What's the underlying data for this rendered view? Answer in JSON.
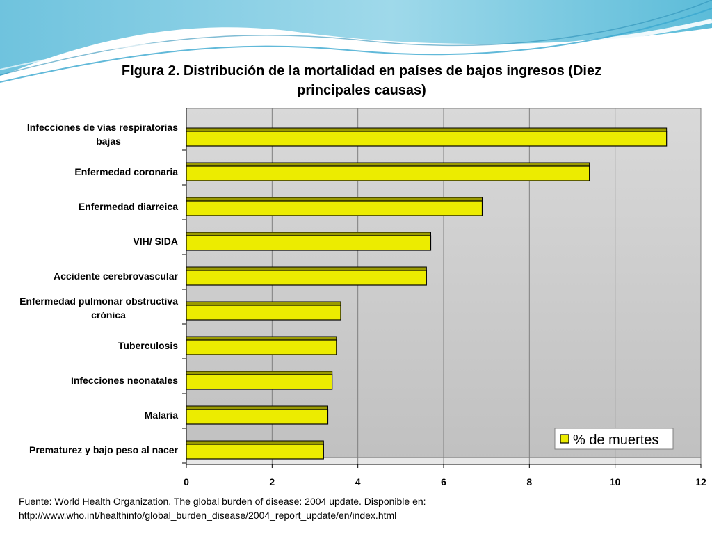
{
  "title": "FIgura 2. Distribución de la mortalidad en países de bajos ingresos (Diez principales causas)",
  "colors": {
    "bar_fill": "#ecec00",
    "bar_edge": "#000000",
    "plot_bg_top": "#d9d9d9",
    "plot_bg_bottom": "#c0c0c0",
    "accent_wave": "#4db8d9"
  },
  "chart_data": {
    "type": "bar",
    "orientation": "horizontal",
    "categories": [
      "Infecciones de vías respiratorias bajas",
      "Enfermedad coronaria",
      "Enfermedad diarreica",
      "VIH/ SIDA",
      "Accidente cerebrovascular",
      "Enfermedad pulmonar obstructiva crónica",
      "Tuberculosis",
      "Infecciones neonatales",
      "Malaria",
      "Prematurez y bajo peso al nacer"
    ],
    "category_lines": [
      [
        "Infecciones de vías respiratorias",
        "bajas"
      ],
      [
        "Enfermedad coronaria"
      ],
      [
        "Enfermedad diarreica"
      ],
      [
        "VIH/ SIDA"
      ],
      [
        "Accidente cerebrovascular"
      ],
      [
        "Enfermedad pulmonar obstructiva",
        "crónica"
      ],
      [
        "Tuberculosis"
      ],
      [
        "Infecciones neonatales"
      ],
      [
        "Malaria"
      ],
      [
        "Prematurez y bajo peso al nacer"
      ]
    ],
    "series": [
      {
        "name": "% de muertes",
        "values": [
          11.2,
          9.4,
          6.9,
          5.7,
          5.6,
          3.6,
          3.5,
          3.4,
          3.3,
          3.2
        ]
      }
    ],
    "xlim": [
      0,
      12
    ],
    "xticks": [
      0,
      2,
      4,
      6,
      8,
      10,
      12
    ],
    "grid": true,
    "legend_position": "bottom-right"
  },
  "source": {
    "line1": "Fuente: World Health Organization. The global burden of disease: 2004 update. Disponible en:",
    "line2": "http://www.who.int/healthinfo/global_burden_disease/2004_report_update/en/index.html"
  }
}
